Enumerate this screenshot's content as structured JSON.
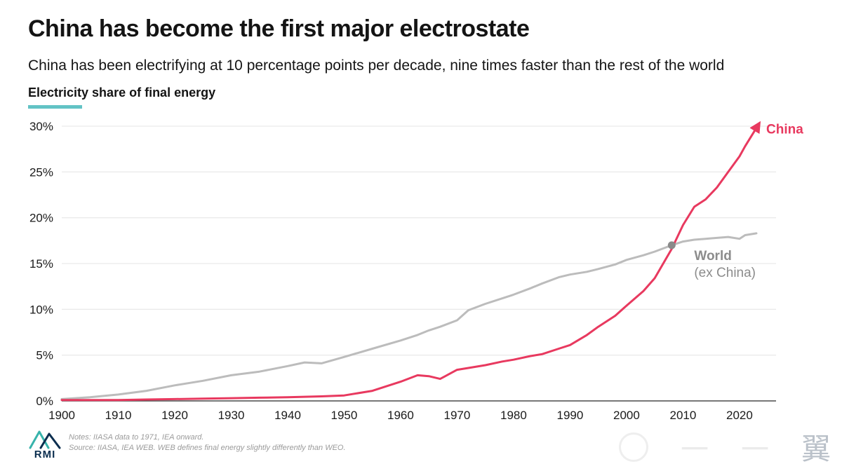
{
  "header": {
    "title": "China has become the first major electrostate",
    "subtitle": "China has been electrifying at 10 percentage points per decade, nine times faster than the rest of the world"
  },
  "chart_label": "Electricity share of final energy",
  "chart_data": {
    "type": "line",
    "title": "Electricity share of final energy",
    "xlabel": "",
    "ylabel": "Electricity share of final energy (%)",
    "xlim": [
      1900,
      2023
    ],
    "ylim": [
      0,
      30
    ],
    "grid": true,
    "xticks": [
      1900,
      1910,
      1920,
      1930,
      1940,
      1950,
      1960,
      1970,
      1980,
      1990,
      2000,
      2010,
      2020
    ],
    "yticks": [
      0,
      5,
      10,
      15,
      20,
      25,
      30
    ],
    "ytick_labels": [
      "0%",
      "5%",
      "10%",
      "15%",
      "20%",
      "25%",
      "30%"
    ],
    "x": [
      1900,
      1905,
      1910,
      1915,
      1920,
      1925,
      1930,
      1935,
      1940,
      1943,
      1946,
      1950,
      1955,
      1960,
      1963,
      1965,
      1967,
      1970,
      1972,
      1975,
      1978,
      1980,
      1983,
      1985,
      1988,
      1990,
      1993,
      1995,
      1998,
      2000,
      2003,
      2005,
      2008,
      2010,
      2012,
      2014,
      2016,
      2018,
      2020,
      2021,
      2023
    ],
    "series": [
      {
        "name": "World (ex China)",
        "color": "#bcbcbc",
        "values": [
          0.2,
          0.4,
          0.7,
          1.1,
          1.7,
          2.2,
          2.8,
          3.2,
          3.8,
          4.2,
          4.1,
          4.8,
          5.7,
          6.6,
          7.2,
          7.7,
          8.1,
          8.8,
          9.9,
          10.6,
          11.2,
          11.6,
          12.3,
          12.8,
          13.5,
          13.8,
          14.1,
          14.4,
          14.9,
          15.4,
          15.9,
          16.3,
          17.0,
          17.4,
          17.6,
          17.7,
          17.8,
          17.9,
          17.7,
          18.1,
          18.3
        ]
      },
      {
        "name": "China",
        "color": "#e8395f",
        "values": [
          0.1,
          0.1,
          0.1,
          0.15,
          0.2,
          0.25,
          0.3,
          0.35,
          0.4,
          0.45,
          0.5,
          0.6,
          1.1,
          2.1,
          2.8,
          2.7,
          2.4,
          3.4,
          3.6,
          3.9,
          4.3,
          4.5,
          4.9,
          5.1,
          5.7,
          6.1,
          7.2,
          8.1,
          9.3,
          10.4,
          12.0,
          13.4,
          16.6,
          19.2,
          21.2,
          22.0,
          23.3,
          25.0,
          26.7,
          27.8,
          29.8
        ]
      }
    ],
    "annotations": {
      "china_label": "China",
      "world_label_bold": "World",
      "world_label_paren": "(ex China)",
      "world_marker": {
        "x": 2008,
        "y": 17.0
      }
    },
    "legend_position": "inline-labels"
  },
  "colors": {
    "china_line": "#e8395f",
    "world_line": "#bcbcbc",
    "world_label": "#8c8c8c",
    "teal_accent": "#62c3c5",
    "gridline": "#e4e4e4",
    "axis_line": "#4a4a4a"
  },
  "footer": {
    "logo_text": "RMI",
    "notes_line": "Notes: IIASA data to 1971, IEA onward.",
    "source_line": "Source: IIASA, IEA WEB. WEB defines final energy slightly differently than WEO."
  },
  "watermark": {
    "dash": "一",
    "glyph": "翼"
  }
}
